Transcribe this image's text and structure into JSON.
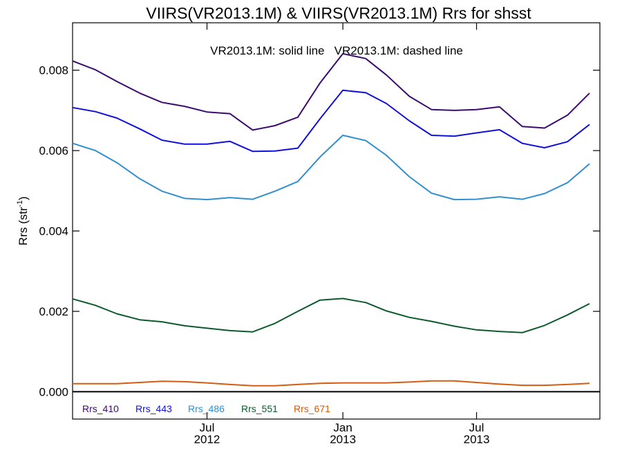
{
  "chart_data": {
    "type": "line",
    "title": "VIIRS(VR2013.1M) & VIIRS(VR2013.1M)  Rrs for shsst",
    "annotation": "VR2013.1M: solid line   VR2013.1M: dashed line",
    "ylabel": "Rrs (str",
    "ylabel_sup": "-1",
    "ylabel_close": ")",
    "ylim": [
      -0.00068,
      0.00918
    ],
    "yticks": [
      0.0,
      0.002,
      0.004,
      0.006,
      0.008
    ],
    "ytick_labels": [
      "0.000",
      "0.002",
      "0.004",
      "0.006",
      "0.008"
    ],
    "xlim": [
      "2012-01-01",
      "2013-12-15"
    ],
    "xticks": [
      {
        "date": "2012-07-01",
        "month": "Jul",
        "year": "2012"
      },
      {
        "date": "2013-01-01",
        "month": "Jan",
        "year": "2013"
      },
      {
        "date": "2013-07-01",
        "month": "Jul",
        "year": "2013"
      }
    ],
    "x": [
      "2012-01-01",
      "2012-02-01",
      "2012-03-01",
      "2012-04-01",
      "2012-05-01",
      "2012-06-01",
      "2012-07-01",
      "2012-08-01",
      "2012-09-01",
      "2012-10-01",
      "2012-11-01",
      "2012-12-01",
      "2013-01-01",
      "2013-02-01",
      "2013-03-01",
      "2013-04-01",
      "2013-05-01",
      "2013-06-01",
      "2013-07-01",
      "2013-08-01",
      "2013-09-01",
      "2013-10-01",
      "2013-11-01",
      "2013-12-01"
    ],
    "series": [
      {
        "name": "Rrs_410",
        "color": "#3b0a6e",
        "values": [
          0.00823,
          0.00801,
          0.00772,
          0.00743,
          0.0072,
          0.0071,
          0.00696,
          0.00692,
          0.00651,
          0.00662,
          0.00683,
          0.00768,
          0.00841,
          0.00829,
          0.00788,
          0.00735,
          0.00702,
          0.007,
          0.00702,
          0.00709,
          0.0066,
          0.00656,
          0.00688,
          0.00743
        ]
      },
      {
        "name": "Rrs_443",
        "color": "#1010d8",
        "values": [
          0.00707,
          0.00697,
          0.00681,
          0.00654,
          0.00626,
          0.00616,
          0.00616,
          0.00623,
          0.00598,
          0.00599,
          0.00606,
          0.00679,
          0.0075,
          0.00744,
          0.00717,
          0.00674,
          0.00638,
          0.00636,
          0.00644,
          0.00652,
          0.00618,
          0.00607,
          0.00622,
          0.00665
        ]
      },
      {
        "name": "Rrs_486",
        "color": "#2f8fd0",
        "values": [
          0.00618,
          0.006,
          0.0057,
          0.0053,
          0.00499,
          0.00481,
          0.00478,
          0.00483,
          0.00479,
          0.00499,
          0.00523,
          0.00584,
          0.00638,
          0.00625,
          0.00588,
          0.00535,
          0.00494,
          0.00478,
          0.00479,
          0.00485,
          0.00479,
          0.00493,
          0.0052,
          0.00567
        ]
      },
      {
        "name": "Rrs_551",
        "color": "#0b5a2c",
        "values": [
          0.00231,
          0.00215,
          0.00194,
          0.00179,
          0.00174,
          0.00164,
          0.00158,
          0.00152,
          0.00149,
          0.0017,
          0.002,
          0.00228,
          0.00232,
          0.00222,
          0.00201,
          0.00185,
          0.00175,
          0.00163,
          0.00154,
          0.0015,
          0.00147,
          0.00165,
          0.00191,
          0.00219
        ]
      },
      {
        "name": "Rrs_671",
        "color": "#d65a10",
        "values": [
          0.0002,
          0.0002,
          0.0002,
          0.00023,
          0.00026,
          0.00025,
          0.00022,
          0.00018,
          0.00015,
          0.00015,
          0.00018,
          0.00021,
          0.00022,
          0.00022,
          0.00022,
          0.00024,
          0.00027,
          0.00027,
          0.00023,
          0.00019,
          0.00016,
          0.00016,
          0.00018,
          0.00021
        ]
      }
    ],
    "zero_line": true,
    "grid": false,
    "legend_position": "bottom-left"
  }
}
